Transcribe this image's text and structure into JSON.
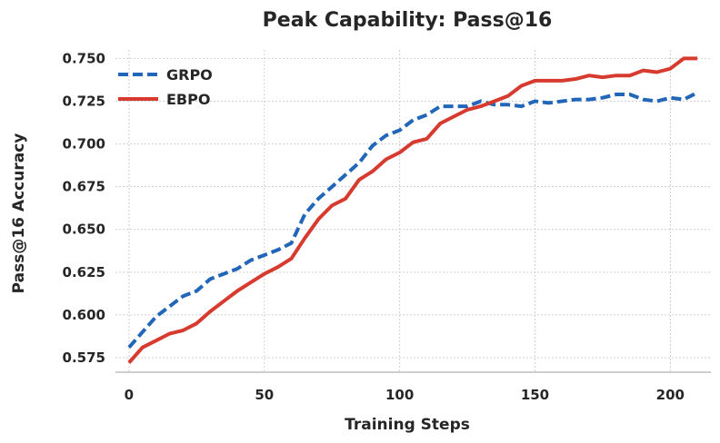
{
  "chart_data": {
    "type": "line",
    "title": "Peak Capability: Pass@16",
    "xlabel": "Training Steps",
    "ylabel": "Pass@16 Accuracy",
    "xlim": [
      -5,
      215
    ],
    "ylim": [
      0.5665,
      0.755
    ],
    "grid": true,
    "legend_position": "top-left",
    "x_ticks": [
      0,
      50,
      100,
      150,
      200
    ],
    "y_ticks": [
      0.575,
      0.6,
      0.625,
      0.65,
      0.675,
      0.7,
      0.725,
      0.75
    ],
    "x_tick_labels": [
      "0",
      "50",
      "100",
      "150",
      "200"
    ],
    "y_tick_labels": [
      "0.575",
      "0.600",
      "0.625",
      "0.650",
      "0.675",
      "0.700",
      "0.725",
      "0.750"
    ],
    "x": [
      0,
      5,
      10,
      15,
      20,
      25,
      30,
      35,
      40,
      45,
      50,
      55,
      60,
      65,
      70,
      75,
      80,
      85,
      90,
      95,
      100,
      105,
      110,
      115,
      120,
      125,
      130,
      135,
      140,
      145,
      150,
      155,
      160,
      165,
      170,
      175,
      180,
      185,
      190,
      195,
      200,
      205,
      210
    ],
    "series": [
      {
        "name": "GRPO",
        "color": "#2166b8",
        "style": "dashed",
        "values": [
          0.581,
          0.59,
          0.599,
          0.605,
          0.611,
          0.614,
          0.621,
          0.624,
          0.627,
          0.632,
          0.635,
          0.638,
          0.642,
          0.659,
          0.668,
          0.675,
          0.682,
          0.689,
          0.699,
          0.705,
          0.708,
          0.714,
          0.717,
          0.722,
          0.722,
          0.722,
          0.725,
          0.723,
          0.723,
          0.722,
          0.725,
          0.724,
          0.725,
          0.726,
          0.726,
          0.727,
          0.729,
          0.729,
          0.726,
          0.725,
          0.727,
          0.726,
          0.73
        ]
      },
      {
        "name": "EBPO",
        "color": "#d73b2f",
        "style": "solid",
        "values": [
          0.572,
          0.581,
          0.585,
          0.589,
          0.591,
          0.595,
          0.602,
          0.608,
          0.614,
          0.619,
          0.624,
          0.628,
          0.633,
          0.645,
          0.656,
          0.664,
          0.668,
          0.679,
          0.684,
          0.691,
          0.695,
          0.701,
          0.703,
          0.712,
          0.716,
          0.72,
          0.722,
          0.725,
          0.728,
          0.734,
          0.737,
          0.737,
          0.737,
          0.738,
          0.74,
          0.739,
          0.74,
          0.74,
          0.743,
          0.742,
          0.744,
          0.75,
          0.75
        ]
      }
    ]
  }
}
